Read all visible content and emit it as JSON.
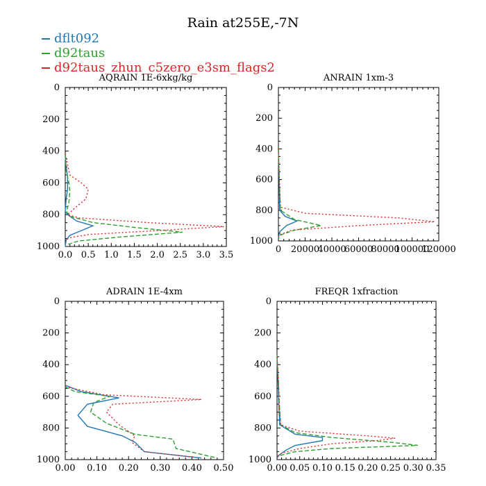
{
  "title": "Rain at255E,-7N",
  "legend": [
    {
      "name": "dflt092",
      "color": "#1f77b4"
    },
    {
      "name": "d92taus",
      "color": "#2ca02c"
    },
    {
      "name": "d92taus_zhun_c5zero_e3sm_flags2",
      "color": "#d62728"
    }
  ],
  "chart_data": [
    {
      "type": "line",
      "title": "AQRAIN  1E-6xkg/kg",
      "xlim": [
        0,
        3.5
      ],
      "xticks": [
        "0.0",
        "0.5",
        "1.0",
        "1.5",
        "2.0",
        "2.5",
        "3.0",
        "3.5"
      ],
      "ylim": [
        1000,
        0
      ],
      "yticks": [
        "0",
        "200",
        "400",
        "600",
        "800",
        "1000"
      ],
      "series": [
        {
          "name": "dflt092",
          "points": [
            [
              0,
              430
            ],
            [
              0.02,
              500
            ],
            [
              0.05,
              560
            ],
            [
              0.05,
              640
            ],
            [
              0.02,
              700
            ],
            [
              0.0,
              780
            ],
            [
              0.05,
              800
            ],
            [
              0.25,
              840
            ],
            [
              0.6,
              870
            ],
            [
              0.35,
              900
            ],
            [
              0.1,
              930
            ],
            [
              0.02,
              960
            ],
            [
              0,
              1000
            ]
          ]
        },
        {
          "name": "d92taus",
          "points": [
            [
              0,
              430
            ],
            [
              0.02,
              520
            ],
            [
              0.08,
              600
            ],
            [
              0.1,
              650
            ],
            [
              0.08,
              720
            ],
            [
              0.03,
              780
            ],
            [
              0.1,
              810
            ],
            [
              0.6,
              850
            ],
            [
              1.5,
              880
            ],
            [
              2.55,
              910
            ],
            [
              1.2,
              940
            ],
            [
              0.3,
              965
            ],
            [
              0.02,
              990
            ]
          ]
        },
        {
          "name": "d92taus_zhun_c5zero_e3sm_flags2",
          "points": [
            [
              0,
              420
            ],
            [
              0.1,
              550
            ],
            [
              0.35,
              600
            ],
            [
              0.5,
              640
            ],
            [
              0.45,
              700
            ],
            [
              0.2,
              760
            ],
            [
              0.05,
              800
            ],
            [
              0.3,
              820
            ],
            [
              1.8,
              850
            ],
            [
              3.45,
              875
            ],
            [
              2.0,
              900
            ],
            [
              0.5,
              925
            ],
            [
              0.1,
              945
            ],
            [
              0,
              960
            ]
          ]
        }
      ]
    },
    {
      "type": "line",
      "title": "ANRAIN  1xm-3",
      "xlim": [
        0,
        120000
      ],
      "xticks": [
        "0",
        "20000",
        "40000",
        "60000",
        "80000",
        "100000",
        "120000"
      ],
      "ylim": [
        1000,
        0
      ],
      "yticks": [
        "0",
        "200",
        "400",
        "600",
        "800",
        "1000"
      ],
      "series": [
        {
          "name": "dflt092",
          "points": [
            [
              0,
              400
            ],
            [
              500,
              600
            ],
            [
              1000,
              800
            ],
            [
              5000,
              840
            ],
            [
              14000,
              870
            ],
            [
              6000,
              900
            ],
            [
              1000,
              940
            ],
            [
              0,
              980
            ]
          ]
        },
        {
          "name": "d92taus",
          "points": [
            [
              0,
              400
            ],
            [
              600,
              600
            ],
            [
              1500,
              800
            ],
            [
              12000,
              860
            ],
            [
              32000,
              900
            ],
            [
              12000,
              930
            ],
            [
              2000,
              960
            ],
            [
              0,
              985
            ]
          ]
        },
        {
          "name": "d92taus_zhun_c5zero_e3sm_flags2",
          "points": [
            [
              0,
              400
            ],
            [
              800,
              600
            ],
            [
              1500,
              780
            ],
            [
              20000,
              820
            ],
            [
              90000,
              850
            ],
            [
              117000,
              875
            ],
            [
              60000,
              900
            ],
            [
              10000,
              930
            ],
            [
              1000,
              960
            ],
            [
              0,
              975
            ]
          ]
        }
      ]
    },
    {
      "type": "line",
      "title": "ADRAIN  1E-4xm",
      "xlim": [
        0,
        0.5
      ],
      "xticks": [
        "0.00",
        "0.10",
        "0.20",
        "0.30",
        "0.40",
        "0.50"
      ],
      "ylim": [
        1000,
        0
      ],
      "yticks": [
        "0",
        "200",
        "400",
        "600",
        "800",
        "1000"
      ],
      "series": [
        {
          "name": "dflt092",
          "points": [
            [
              0,
              530
            ],
            [
              0.05,
              570
            ],
            [
              0.17,
              610
            ],
            [
              0.07,
              650
            ],
            [
              0.04,
              720
            ],
            [
              0.07,
              790
            ],
            [
              0.18,
              850
            ],
            [
              0.22,
              890
            ],
            [
              0.25,
              950
            ],
            [
              0.43,
              990
            ]
          ]
        },
        {
          "name": "d92taus",
          "points": [
            [
              0,
              540
            ],
            [
              0.03,
              570
            ],
            [
              0.14,
              600
            ],
            [
              0.09,
              640
            ],
            [
              0.08,
              700
            ],
            [
              0.13,
              770
            ],
            [
              0.22,
              840
            ],
            [
              0.34,
              870
            ],
            [
              0.35,
              930
            ],
            [
              0.48,
              990
            ]
          ]
        },
        {
          "name": "d92taus_zhun_c5zero_e3sm_flags2",
          "points": [
            [
              0,
              540
            ],
            [
              0.12,
              590
            ],
            [
              0.43,
              620
            ],
            [
              0.15,
              650
            ],
            [
              0.13,
              700
            ],
            [
              0.17,
              780
            ],
            [
              0.22,
              850
            ],
            [
              0.21,
              890
            ],
            [
              0.25,
              950
            ],
            [
              0.41,
              985
            ]
          ]
        }
      ]
    },
    {
      "type": "line",
      "title": "FREQR  1xfraction",
      "xlim": [
        0,
        0.35
      ],
      "xticks": [
        "0.00",
        "0.05",
        "0.10",
        "0.15",
        "0.20",
        "0.25",
        "0.30",
        "0.35"
      ],
      "ylim": [
        1000,
        0
      ],
      "yticks": [
        "0",
        "200",
        "400",
        "600",
        "800",
        "1000"
      ],
      "series": [
        {
          "name": "dflt092",
          "points": [
            [
              0,
              350
            ],
            [
              0.002,
              500
            ],
            [
              0.004,
              650
            ],
            [
              0.006,
              780
            ],
            [
              0.04,
              840
            ],
            [
              0.1,
              860
            ],
            [
              0.1,
              880
            ],
            [
              0.04,
              910
            ],
            [
              0.02,
              940
            ],
            [
              0.005,
              970
            ],
            [
              0,
              990
            ]
          ]
        },
        {
          "name": "d92taus",
          "points": [
            [
              0,
              340
            ],
            [
              0.003,
              500
            ],
            [
              0.005,
              650
            ],
            [
              0.008,
              780
            ],
            [
              0.04,
              830
            ],
            [
              0.12,
              860
            ],
            [
              0.25,
              890
            ],
            [
              0.31,
              910
            ],
            [
              0.12,
              930
            ],
            [
              0.04,
              950
            ],
            [
              0.005,
              975
            ]
          ]
        },
        {
          "name": "d92taus_zhun_c5zero_e3sm_flags2",
          "points": [
            [
              0,
              350
            ],
            [
              0.003,
              500
            ],
            [
              0.005,
              650
            ],
            [
              0.008,
              780
            ],
            [
              0.05,
              820
            ],
            [
              0.2,
              850
            ],
            [
              0.26,
              865
            ],
            [
              0.22,
              880
            ],
            [
              0.12,
              900
            ],
            [
              0.05,
              930
            ],
            [
              0.01,
              960
            ],
            [
              0,
              980
            ]
          ]
        }
      ]
    }
  ]
}
